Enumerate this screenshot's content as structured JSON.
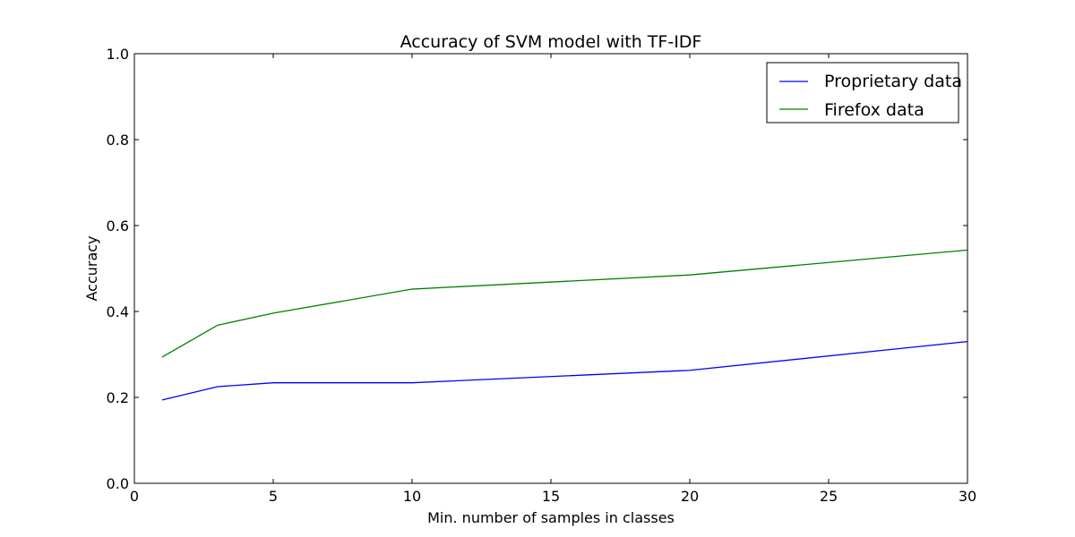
{
  "chart_data": {
    "type": "line",
    "title": "Accuracy of SVM model with TF-IDF",
    "xlabel": "Min. number of samples in classes",
    "ylabel": "Accuracy",
    "xlim": [
      0,
      30
    ],
    "ylim": [
      0.0,
      1.0
    ],
    "xticks": [
      0,
      5,
      10,
      15,
      20,
      25,
      30
    ],
    "xtick_labels": [
      "0",
      "5",
      "10",
      "15",
      "20",
      "25",
      "30"
    ],
    "yticks": [
      0.0,
      0.2,
      0.4,
      0.6,
      0.8,
      1.0
    ],
    "ytick_labels": [
      "0.0",
      "0.2",
      "0.4",
      "0.6",
      "0.8",
      "1.0"
    ],
    "grid": false,
    "legend_position": "top-right",
    "x": [
      1,
      3,
      5,
      10,
      20,
      30
    ],
    "series": [
      {
        "name": "Proprietary data",
        "color": "#0000ff",
        "values": [
          0.194,
          0.225,
          0.234,
          0.234,
          0.263,
          0.33
        ]
      },
      {
        "name": "Firefox data",
        "color": "#008000",
        "values": [
          0.294,
          0.368,
          0.396,
          0.452,
          0.485,
          0.543
        ]
      }
    ]
  }
}
